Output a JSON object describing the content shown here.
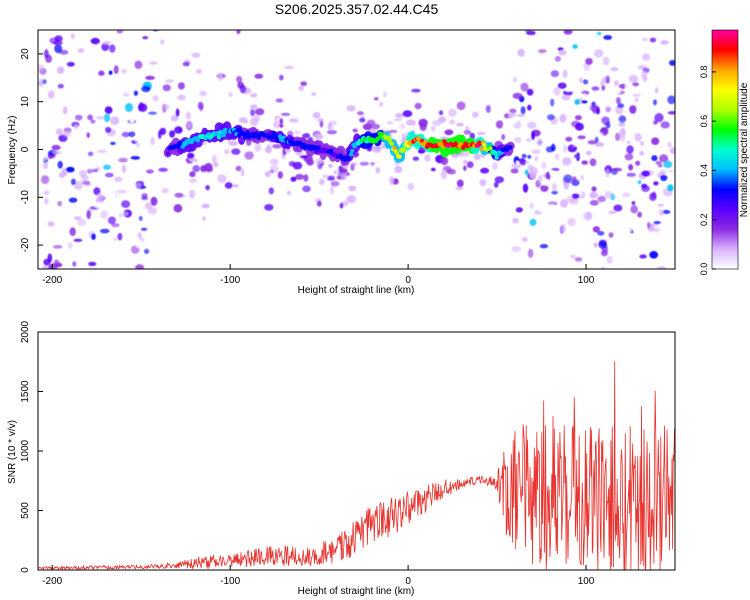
{
  "figure": {
    "title": "S206.2025.357.02.44.C45"
  },
  "chart_data": [
    {
      "type": "heatmap",
      "title": "",
      "xlabel": "Height of straight line (km)",
      "ylabel": "Frequency (Hz)",
      "xlim": [
        -208,
        150
      ],
      "ylim": [
        -25,
        25
      ],
      "xticks": [
        -200,
        -100,
        0,
        100
      ],
      "yticks": [
        -20,
        -10,
        0,
        10,
        20
      ],
      "colorbar": {
        "label": "Normalized spectral amplitude",
        "range": [
          0.0,
          0.97
        ],
        "ticks": [
          0.0,
          0.2,
          0.4,
          0.6,
          0.8
        ],
        "colors": [
          "#ffffff",
          "#d9b3ff",
          "#8a2be2",
          "#5a00ff",
          "#0000ff",
          "#00bfff",
          "#00ffcc",
          "#00ff00",
          "#b0ff00",
          "#ffff00",
          "#ffa500",
          "#ff0000",
          "#ff00a0"
        ]
      },
      "ridge": {
        "description": "dominant energy ridge",
        "x": [
          -135,
          -120,
          -110,
          -100,
          -90,
          -80,
          -70,
          -60,
          -50,
          -40,
          -35,
          -30,
          -25,
          -20,
          -15,
          -10,
          -8,
          -5,
          0,
          5,
          10,
          20,
          30,
          40,
          45,
          50,
          55,
          60
        ],
        "y": [
          0,
          2,
          3,
          4,
          3,
          3,
          2,
          1,
          0,
          -1,
          -2,
          1,
          2,
          2,
          3,
          2,
          0,
          -1,
          1,
          2,
          1,
          1,
          1,
          1,
          0,
          -1,
          0,
          1
        ],
        "peak_amplitude": [
          0.3,
          0.45,
          0.5,
          0.4,
          0.35,
          0.35,
          0.4,
          0.35,
          0.3,
          0.3,
          0.35,
          0.45,
          0.55,
          0.6,
          0.65,
          0.7,
          0.8,
          0.7,
          0.85,
          0.9,
          0.95,
          0.97,
          0.97,
          0.95,
          0.7,
          0.5,
          0.35,
          0.25
        ]
      }
    },
    {
      "type": "line",
      "title": "",
      "xlabel": "Height of straight line (km)",
      "ylabel": "SNR (10 * v/v)",
      "xlim": [
        -208,
        150
      ],
      "ylim": [
        0,
        2000
      ],
      "xticks": [
        -200,
        -100,
        0,
        100
      ],
      "yticks": [
        0,
        500,
        1000,
        1500,
        2000
      ],
      "series": [
        {
          "name": "SNR",
          "color": "#e8322d",
          "envelope_x": [
            -208,
            -180,
            -150,
            -130,
            -120,
            -110,
            -100,
            -90,
            -80,
            -70,
            -60,
            -50,
            -40,
            -30,
            -20,
            -10,
            0,
            10,
            20,
            30,
            40,
            50,
            55,
            60,
            70,
            80,
            90,
            100,
            110,
            120,
            130,
            140,
            150
          ],
          "envelope_mean": [
            15,
            20,
            25,
            40,
            60,
            70,
            80,
            95,
            120,
            120,
            110,
            140,
            180,
            260,
            380,
            440,
            520,
            600,
            680,
            730,
            760,
            740,
            720,
            650,
            620,
            600,
            580,
            620,
            560,
            600,
            580,
            560,
            560
          ],
          "envelope_spread": [
            10,
            15,
            15,
            25,
            50,
            60,
            60,
            70,
            80,
            90,
            80,
            100,
            120,
            160,
            180,
            160,
            150,
            120,
            80,
            40,
            30,
            60,
            500,
            600,
            600,
            600,
            650,
            620,
            650,
            650,
            700,
            700,
            650
          ]
        }
      ]
    }
  ]
}
